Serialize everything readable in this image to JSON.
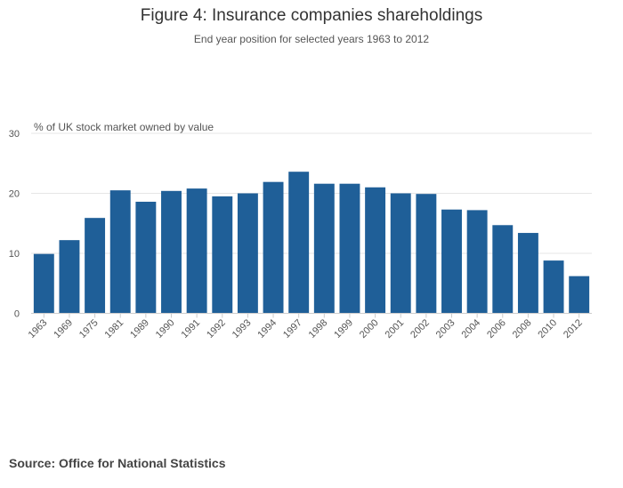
{
  "chart_data": {
    "type": "bar",
    "title": "Figure 4: Insurance companies shareholdings",
    "subtitle": "End year position for selected years 1963 to 2012",
    "ylabel": "% of UK stock market owned by value",
    "xlabel": "",
    "ylim": [
      0,
      30
    ],
    "yticks": [
      0,
      10,
      20,
      30
    ],
    "grid": true,
    "legend": "none",
    "categories": [
      "1963",
      "1969",
      "1975",
      "1981",
      "1989",
      "1990",
      "1991",
      "1992",
      "1993",
      "1994",
      "1997",
      "1998",
      "1999",
      "2000",
      "2001",
      "2002",
      "2003",
      "2004",
      "2006",
      "2008",
      "2010",
      "2012"
    ],
    "series": [
      {
        "name": "Insurance companies",
        "values": [
          9.9,
          12.2,
          15.9,
          20.5,
          18.6,
          20.4,
          20.8,
          19.5,
          20.0,
          21.9,
          23.6,
          21.6,
          21.6,
          21.0,
          20.0,
          19.9,
          17.3,
          17.2,
          14.7,
          13.4,
          8.8,
          6.2
        ]
      }
    ],
    "colors": {
      "bar": "#1f5f98",
      "grid": "#e6e6e6",
      "axis": "#cccccc",
      "tick_text": "#555555"
    }
  },
  "source": "Source: Office for National Statistics"
}
